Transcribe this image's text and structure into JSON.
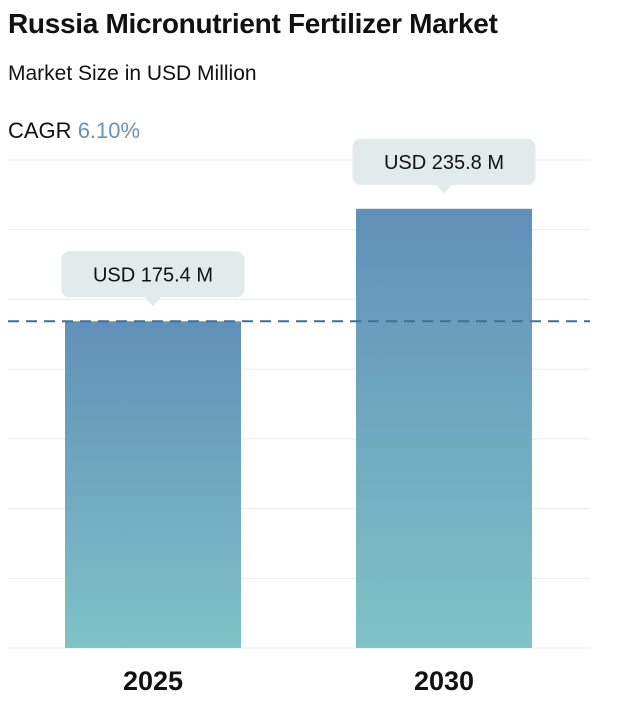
{
  "header": {
    "title": "Russia Micronutrient Fertilizer Market",
    "subtitle": "Market Size in USD Million",
    "cagr_label": "CAGR",
    "cagr_value": "6.10%"
  },
  "colors": {
    "bar_top": "#6190b8",
    "bar_bottom": "#7fc2c7",
    "label_box": "#e2eaec",
    "reference_line": "#3f6f99",
    "grid": "#ececec"
  },
  "chart_data": {
    "type": "bar",
    "categories": [
      "2025",
      "2030"
    ],
    "values": [
      175.4,
      235.8
    ],
    "value_labels": [
      "USD 175.4 M",
      "USD 235.8 M"
    ],
    "title": "Russia Micronutrient Fertilizer Market",
    "subtitle": "Market Size in USD Million",
    "xlabel": "",
    "ylabel": "",
    "ylim": [
      0,
      262
    ],
    "grid": true,
    "reference_line_value": 175.4,
    "legend": "none"
  }
}
